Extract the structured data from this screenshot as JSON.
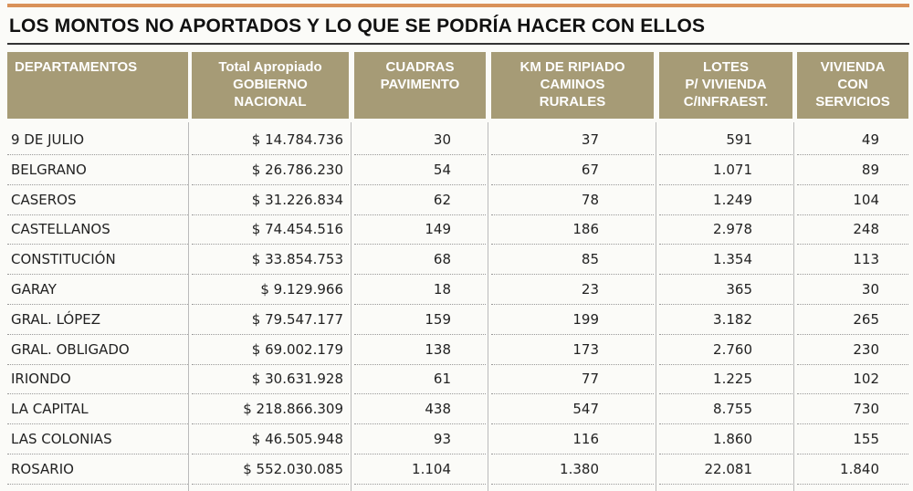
{
  "title": "LOS MONTOS NO APORTADOS Y LO QUE SE PODRÍA HACER CON ELLOS",
  "table": {
    "headers": [
      [
        "DEPARTAMENTOS"
      ],
      [
        "Total Apropiado",
        "GOBIERNO",
        "NACIONAL"
      ],
      [
        "CUADRAS",
        "PAVIMENTO"
      ],
      [
        "KM DE RIPIADO",
        "CAMINOS",
        "RURALES"
      ],
      [
        "LOTES",
        "P/ VIVIENDA",
        "C/INFRAEST."
      ],
      [
        "VIVIENDA",
        "CON",
        "SERVICIOS"
      ]
    ],
    "rows": [
      [
        "9 DE JULIO",
        "$ 14.784.736",
        "30",
        "37",
        "591",
        "49"
      ],
      [
        "BELGRANO",
        "$ 26.786.230",
        "54",
        "67",
        "1.071",
        "89"
      ],
      [
        "CASEROS",
        "$ 31.226.834",
        "62",
        "78",
        "1.249",
        "104"
      ],
      [
        "CASTELLANOS",
        "$ 74.454.516",
        "149",
        "186",
        "2.978",
        "248"
      ],
      [
        "CONSTITUCIÓN",
        "$ 33.854.753",
        "68",
        "85",
        "1.354",
        "113"
      ],
      [
        "GARAY",
        "$ 9.129.966",
        "18",
        "23",
        "365",
        "30"
      ],
      [
        "GRAL. LÓPEZ",
        "$ 79.547.177",
        "159",
        "199",
        "3.182",
        "265"
      ],
      [
        "GRAL. OBLIGADO",
        "$ 69.002.179",
        "138",
        "173",
        "2.760",
        "230"
      ],
      [
        "IRIONDO",
        "$ 30.631.928",
        "61",
        "77",
        "1.225",
        "102"
      ],
      [
        "LA CAPITAL",
        "$ 218.866.309",
        "438",
        "547",
        "8.755",
        "730"
      ],
      [
        "LAS COLONIAS",
        "$ 46.505.948",
        "93",
        "116",
        "1.860",
        "155"
      ],
      [
        "ROSARIO",
        "$ 552.030.085",
        "1.104",
        "1.380",
        "22.081",
        "1.840"
      ]
    ]
  }
}
